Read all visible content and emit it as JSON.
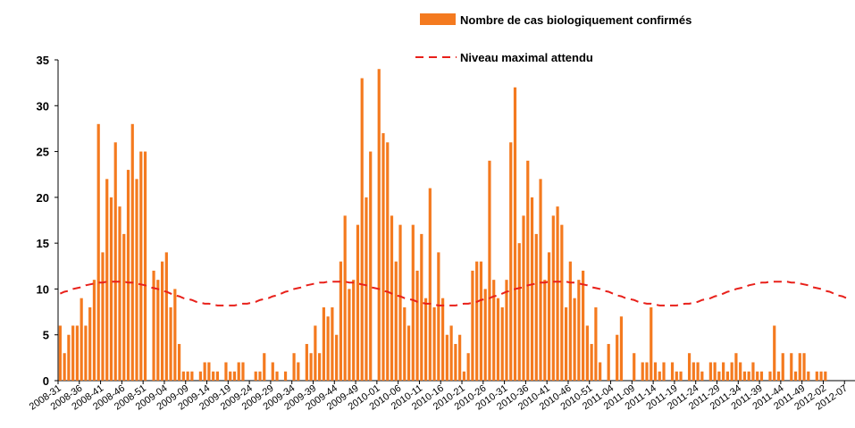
{
  "chart_data": {
    "type": "bar",
    "categories": [
      "2008-31",
      null,
      null,
      null,
      null,
      "2008-36",
      null,
      null,
      null,
      null,
      "2008-41",
      null,
      null,
      null,
      null,
      "2008-46",
      null,
      null,
      null,
      null,
      "2008-51",
      null,
      null,
      null,
      null,
      "2009-04",
      null,
      null,
      null,
      null,
      "2009-09",
      null,
      null,
      null,
      null,
      "2009-14",
      null,
      null,
      null,
      null,
      "2009-19",
      null,
      null,
      null,
      null,
      "2009-24",
      null,
      null,
      null,
      null,
      "2009-29",
      null,
      null,
      null,
      null,
      "2009-34",
      null,
      null,
      null,
      null,
      "2009-39",
      null,
      null,
      null,
      null,
      "2009-44",
      null,
      null,
      null,
      null,
      "2009-49",
      null,
      null,
      null,
      null,
      "2010-01",
      null,
      null,
      null,
      null,
      "2010-06",
      null,
      null,
      null,
      null,
      "2010-11",
      null,
      null,
      null,
      null,
      "2010-16",
      null,
      null,
      null,
      null,
      "2010-21",
      null,
      null,
      null,
      null,
      "2010-26",
      null,
      null,
      null,
      null,
      "2010-31",
      null,
      null,
      null,
      null,
      "2010-36",
      null,
      null,
      null,
      null,
      "2010-41",
      null,
      null,
      null,
      null,
      "2010-46",
      null,
      null,
      null,
      null,
      "2010-51",
      null,
      null,
      null,
      null,
      "2011-04",
      null,
      null,
      null,
      null,
      "2011-09",
      null,
      null,
      null,
      null,
      "2011-14",
      null,
      null,
      null,
      null,
      "2011-19",
      null,
      null,
      null,
      null,
      "2011-24",
      null,
      null,
      null,
      null,
      "2011-29",
      null,
      null,
      null,
      null,
      "2011-34",
      null,
      null,
      null,
      null,
      "2011-39",
      null,
      null,
      null,
      null,
      "2011-44",
      null,
      null,
      null,
      null,
      "2011-49",
      null,
      null,
      null,
      null,
      "2012-02",
      null,
      null,
      null,
      null,
      "2012-07"
    ],
    "series": [
      {
        "name": "Nombre de cas biologiquement confirmés",
        "color": "#f47a1f",
        "kind": "bar",
        "values": [
          6,
          3,
          5,
          6,
          6,
          9,
          6,
          8,
          11,
          28,
          14,
          22,
          20,
          26,
          19,
          16,
          23,
          28,
          22,
          25,
          25,
          0,
          12,
          11,
          13,
          14,
          8,
          10,
          4,
          1,
          1,
          1,
          0,
          1,
          2,
          2,
          1,
          1,
          0,
          2,
          1,
          1,
          2,
          2,
          0,
          0,
          1,
          1,
          3,
          0,
          2,
          1,
          0,
          1,
          0,
          3,
          2,
          0,
          4,
          3,
          6,
          3,
          8,
          7,
          8,
          5,
          13,
          18,
          10,
          11,
          17,
          33,
          20,
          25,
          0,
          34,
          27,
          26,
          18,
          13,
          17,
          8,
          6,
          17,
          12,
          16,
          9,
          21,
          8,
          14,
          9,
          5,
          6,
          4,
          5,
          1,
          3,
          12,
          13,
          13,
          10,
          24,
          11,
          9,
          8,
          11,
          26,
          32,
          15,
          18,
          24,
          20,
          16,
          22,
          11,
          14,
          18,
          19,
          17,
          8,
          13,
          9,
          11,
          12,
          6,
          4,
          8,
          2,
          0,
          4,
          0,
          5,
          7,
          0,
          0,
          3,
          0,
          2,
          2,
          8,
          2,
          1,
          2,
          0,
          2,
          1,
          1,
          0,
          3,
          2,
          2,
          1,
          0,
          2,
          2,
          1,
          2,
          1,
          2,
          3,
          2,
          1,
          1,
          2,
          1,
          1,
          0,
          1,
          6,
          1,
          3,
          0,
          3,
          1,
          3,
          3,
          1,
          0,
          1,
          1,
          1,
          0,
          0,
          0,
          0,
          0
        ]
      },
      {
        "name": "Niveau maximal attendu",
        "color": "#e8201a",
        "kind": "line",
        "values": [
          9.5,
          9.7,
          9.8,
          10.0,
          10.1,
          10.2,
          10.4,
          10.5,
          10.6,
          10.7,
          10.7,
          10.8,
          10.8,
          10.8,
          10.8,
          10.8,
          10.7,
          10.7,
          10.6,
          10.5,
          10.4,
          10.2,
          10.1,
          10.0,
          9.8,
          9.7,
          9.5,
          9.3,
          9.2,
          9.0,
          8.9,
          8.8,
          8.6,
          8.5,
          8.4,
          8.4,
          8.3,
          8.2,
          8.2,
          8.2,
          8.2,
          8.2,
          8.3,
          8.4,
          8.4,
          8.5,
          8.6,
          8.8,
          8.9,
          9.0,
          9.2,
          9.3,
          9.5,
          9.7,
          9.8,
          10.0,
          10.1,
          10.2,
          10.4,
          10.5,
          10.6,
          10.7,
          10.7,
          10.8,
          10.8,
          10.8,
          10.8,
          10.8,
          10.7,
          10.7,
          10.6,
          10.5,
          10.4,
          10.2,
          10.1,
          10.0,
          9.8,
          9.7,
          9.5,
          9.3,
          9.2,
          9.0,
          8.9,
          8.8,
          8.6,
          8.5,
          8.4,
          8.4,
          8.3,
          8.2,
          8.2,
          8.2,
          8.2,
          8.2,
          8.3,
          8.4,
          8.4,
          8.5,
          8.6,
          8.8,
          8.9,
          9.0,
          9.2,
          9.3,
          9.5,
          9.7,
          9.8,
          10.0,
          10.1,
          10.2,
          10.4,
          10.5,
          10.6,
          10.7,
          10.7,
          10.8,
          10.8,
          10.8,
          10.8,
          10.8,
          10.7,
          10.7,
          10.6,
          10.5,
          10.4,
          10.2,
          10.1,
          10.0,
          9.8,
          9.7,
          9.5,
          9.3,
          9.2,
          9.0,
          8.9,
          8.8,
          8.6,
          8.5,
          8.4,
          8.4,
          8.3,
          8.2,
          8.2,
          8.2,
          8.2,
          8.2,
          8.3,
          8.4,
          8.4,
          8.5,
          8.6,
          8.8,
          8.9,
          9.0,
          9.2,
          9.3,
          9.5,
          9.7,
          9.8,
          10.0,
          10.1,
          10.2,
          10.4,
          10.5,
          10.6,
          10.7,
          10.7,
          10.8,
          10.8,
          10.8,
          10.8,
          10.8,
          10.7,
          10.7,
          10.6,
          10.5,
          10.4,
          10.2,
          10.1,
          10.0,
          9.8,
          9.7,
          9.5,
          9.3,
          9.2,
          9.0
        ]
      }
    ],
    "ylim": [
      0,
      35
    ],
    "yticks": [
      0,
      5,
      10,
      15,
      20,
      25,
      30,
      35
    ],
    "legend": "top-right"
  }
}
